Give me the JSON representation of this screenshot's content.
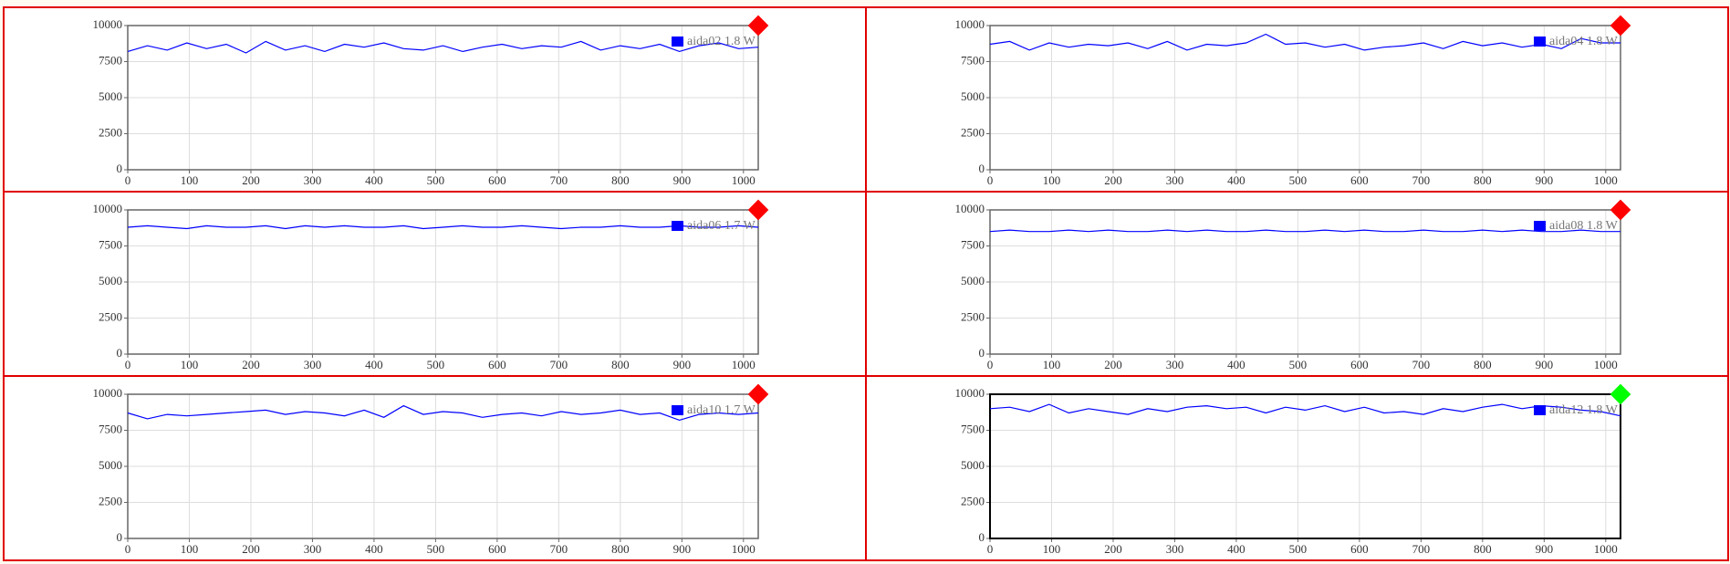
{
  "chart_data": [
    {
      "type": "line",
      "x": [
        0,
        32,
        64,
        96,
        128,
        160,
        192,
        224,
        256,
        288,
        320,
        352,
        384,
        416,
        448,
        480,
        512,
        544,
        576,
        608,
        640,
        672,
        704,
        736,
        768,
        800,
        832,
        864,
        896,
        928,
        960,
        992,
        1024
      ],
      "series": [
        {
          "name": "aida02 1.8 W",
          "color": "#0000ff",
          "values": [
            8200,
            8600,
            8300,
            8800,
            8400,
            8700,
            8100,
            8900,
            8300,
            8600,
            8200,
            8700,
            8500,
            8800,
            8400,
            8300,
            8600,
            8200,
            8500,
            8700,
            8400,
            8600,
            8500,
            8900,
            8300,
            8600,
            8400,
            8700,
            8200,
            8600,
            8800,
            8400,
            8500
          ]
        }
      ],
      "xlim": [
        0,
        1024
      ],
      "ylim": [
        0,
        10000
      ],
      "xticks": [
        0,
        100,
        200,
        300,
        400,
        500,
        600,
        700,
        800,
        900,
        1000
      ],
      "yticks": [
        0,
        2500,
        5000,
        7500,
        10000
      ],
      "grid": true,
      "legend": "upper right",
      "status_color": "#ff0000",
      "frame_color": "#666666"
    },
    {
      "type": "line",
      "x": [
        0,
        32,
        64,
        96,
        128,
        160,
        192,
        224,
        256,
        288,
        320,
        352,
        384,
        416,
        448,
        480,
        512,
        544,
        576,
        608,
        640,
        672,
        704,
        736,
        768,
        800,
        832,
        864,
        896,
        928,
        960,
        992,
        1024
      ],
      "series": [
        {
          "name": "aida04 1.8 W",
          "color": "#0000ff",
          "values": [
            8700,
            8900,
            8300,
            8800,
            8500,
            8700,
            8600,
            8800,
            8400,
            8900,
            8300,
            8700,
            8600,
            8800,
            9400,
            8700,
            8800,
            8500,
            8700,
            8300,
            8500,
            8600,
            8800,
            8400,
            8900,
            8600,
            8800,
            8500,
            8700,
            8400,
            9100,
            8800,
            8800
          ]
        }
      ],
      "xlim": [
        0,
        1024
      ],
      "ylim": [
        0,
        10000
      ],
      "xticks": [
        0,
        100,
        200,
        300,
        400,
        500,
        600,
        700,
        800,
        900,
        1000
      ],
      "yticks": [
        0,
        2500,
        5000,
        7500,
        10000
      ],
      "grid": true,
      "legend": "upper right",
      "status_color": "#ff0000",
      "frame_color": "#666666"
    },
    {
      "type": "line",
      "x": [
        0,
        32,
        64,
        96,
        128,
        160,
        192,
        224,
        256,
        288,
        320,
        352,
        384,
        416,
        448,
        480,
        512,
        544,
        576,
        608,
        640,
        672,
        704,
        736,
        768,
        800,
        832,
        864,
        896,
        928,
        960,
        992,
        1024
      ],
      "series": [
        {
          "name": "aida06 1.7 W",
          "color": "#0000ff",
          "values": [
            8800,
            8900,
            8800,
            8700,
            8900,
            8800,
            8800,
            8900,
            8700,
            8900,
            8800,
            8900,
            8800,
            8800,
            8900,
            8700,
            8800,
            8900,
            8800,
            8800,
            8900,
            8800,
            8700,
            8800,
            8800,
            8900,
            8800,
            8800,
            8900,
            8800,
            8800,
            8900,
            8800
          ]
        }
      ],
      "xlim": [
        0,
        1024
      ],
      "ylim": [
        0,
        10000
      ],
      "xticks": [
        0,
        100,
        200,
        300,
        400,
        500,
        600,
        700,
        800,
        900,
        1000
      ],
      "yticks": [
        0,
        2500,
        5000,
        7500,
        10000
      ],
      "grid": true,
      "legend": "upper right",
      "status_color": "#ff0000",
      "frame_color": "#666666"
    },
    {
      "type": "line",
      "x": [
        0,
        32,
        64,
        96,
        128,
        160,
        192,
        224,
        256,
        288,
        320,
        352,
        384,
        416,
        448,
        480,
        512,
        544,
        576,
        608,
        640,
        672,
        704,
        736,
        768,
        800,
        832,
        864,
        896,
        928,
        960,
        992,
        1024
      ],
      "series": [
        {
          "name": "aida08 1.8 W",
          "color": "#0000ff",
          "values": [
            8500,
            8600,
            8500,
            8500,
            8600,
            8500,
            8600,
            8500,
            8500,
            8600,
            8500,
            8600,
            8500,
            8500,
            8600,
            8500,
            8500,
            8600,
            8500,
            8600,
            8500,
            8500,
            8600,
            8500,
            8500,
            8600,
            8500,
            8600,
            8500,
            8500,
            8600,
            8500,
            8500
          ]
        }
      ],
      "xlim": [
        0,
        1024
      ],
      "ylim": [
        0,
        10000
      ],
      "xticks": [
        0,
        100,
        200,
        300,
        400,
        500,
        600,
        700,
        800,
        900,
        1000
      ],
      "yticks": [
        0,
        2500,
        5000,
        7500,
        10000
      ],
      "grid": true,
      "legend": "upper right",
      "status_color": "#ff0000",
      "frame_color": "#666666"
    },
    {
      "type": "line",
      "x": [
        0,
        32,
        64,
        96,
        128,
        160,
        192,
        224,
        256,
        288,
        320,
        352,
        384,
        416,
        448,
        480,
        512,
        544,
        576,
        608,
        640,
        672,
        704,
        736,
        768,
        800,
        832,
        864,
        896,
        928,
        960,
        992,
        1024
      ],
      "series": [
        {
          "name": "aida10 1.7 W",
          "color": "#0000ff",
          "values": [
            8700,
            8300,
            8600,
            8500,
            8600,
            8700,
            8800,
            8900,
            8600,
            8800,
            8700,
            8500,
            8900,
            8400,
            9200,
            8600,
            8800,
            8700,
            8400,
            8600,
            8700,
            8500,
            8800,
            8600,
            8700,
            8900,
            8600,
            8700,
            8200,
            8600,
            8700,
            8600,
            8700
          ]
        }
      ],
      "xlim": [
        0,
        1024
      ],
      "ylim": [
        0,
        10000
      ],
      "xticks": [
        0,
        100,
        200,
        300,
        400,
        500,
        600,
        700,
        800,
        900,
        1000
      ],
      "yticks": [
        0,
        2500,
        5000,
        7500,
        10000
      ],
      "grid": true,
      "legend": "upper right",
      "status_color": "#ff0000",
      "frame_color": "#666666"
    },
    {
      "type": "line",
      "x": [
        0,
        32,
        64,
        96,
        128,
        160,
        192,
        224,
        256,
        288,
        320,
        352,
        384,
        416,
        448,
        480,
        512,
        544,
        576,
        608,
        640,
        672,
        704,
        736,
        768,
        800,
        832,
        864,
        896,
        928,
        960,
        992,
        1024
      ],
      "series": [
        {
          "name": "aida12 1.8 W",
          "color": "#0000ff",
          "values": [
            9000,
            9100,
            8800,
            9300,
            8700,
            9000,
            8800,
            8600,
            9000,
            8800,
            9100,
            9200,
            9000,
            9100,
            8700,
            9100,
            8900,
            9200,
            8800,
            9100,
            8700,
            8800,
            8600,
            9000,
            8800,
            9100,
            9300,
            9000,
            9200,
            9100,
            8900,
            8800,
            8500
          ]
        }
      ],
      "xlim": [
        0,
        1024
      ],
      "ylim": [
        0,
        10000
      ],
      "xticks": [
        0,
        100,
        200,
        300,
        400,
        500,
        600,
        700,
        800,
        900,
        1000
      ],
      "yticks": [
        0,
        2500,
        5000,
        7500,
        10000
      ],
      "grid": true,
      "legend": "upper right",
      "status_color": "#00ff00",
      "frame_color": "#000000"
    }
  ]
}
